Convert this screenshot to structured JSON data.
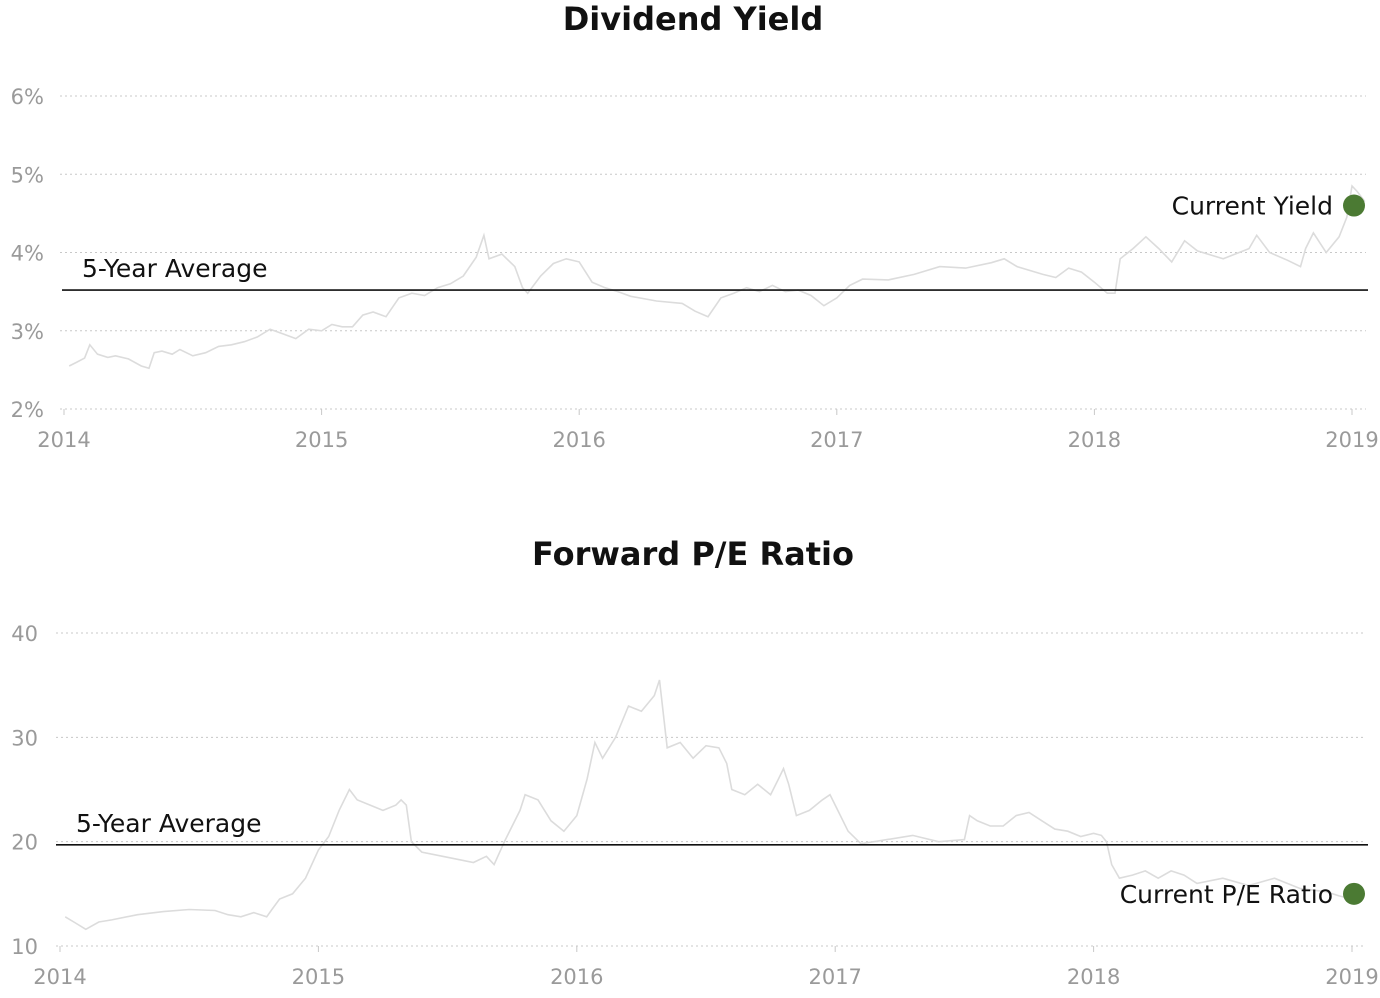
{
  "chart_data": [
    {
      "type": "line",
      "title": "Dividend Yield",
      "xlabel": "",
      "ylabel": "",
      "x_ticks": [
        "2014",
        "2015",
        "2016",
        "2017",
        "2018",
        "2019"
      ],
      "y_ticks": [
        "2%",
        "3%",
        "4%",
        "5%",
        "6%"
      ],
      "xlim": [
        2014.0,
        2019.0
      ],
      "ylim": [
        2,
        6
      ],
      "grid": "horizontal dotted",
      "average_label": "5-Year Average",
      "average_value": 3.52,
      "current_label": "Current Yield",
      "current_value": 4.6,
      "marker_color": "#4b7a33",
      "line_color": "#dcdcdc",
      "series": [
        {
          "x": [
            2014.02,
            2014.05,
            2014.08,
            2014.1,
            2014.13,
            2014.17,
            2014.2,
            2014.25,
            2014.3,
            2014.33,
            2014.35,
            2014.38,
            2014.42,
            2014.45,
            2014.5,
            2014.55,
            2014.6,
            2014.65,
            2014.7,
            2014.75,
            2014.8,
            2014.85,
            2014.9,
            2014.95,
            2015.0,
            2015.04,
            2015.08,
            2015.12,
            2015.16,
            2015.2,
            2015.25,
            2015.3,
            2015.35,
            2015.4,
            2015.45,
            2015.5,
            2015.55,
            2015.6,
            2015.63,
            2015.65,
            2015.7,
            2015.75,
            2015.78,
            2015.8,
            2015.85,
            2015.9,
            2015.95,
            2016.0,
            2016.05,
            2016.1,
            2016.15,
            2016.2,
            2016.3,
            2016.4,
            2016.45,
            2016.5,
            2016.55,
            2016.6,
            2016.65,
            2016.7,
            2016.75,
            2016.8,
            2016.85,
            2016.9,
            2016.95,
            2017.0,
            2017.05,
            2017.1,
            2017.2,
            2017.3,
            2017.4,
            2017.5,
            2017.6,
            2017.65,
            2017.7,
            2017.8,
            2017.85,
            2017.9,
            2017.95,
            2018.0,
            2018.05,
            2018.08,
            2018.1,
            2018.15,
            2018.2,
            2018.25,
            2018.3,
            2018.35,
            2018.4,
            2018.5,
            2018.6,
            2018.63,
            2018.68,
            2018.75,
            2018.8,
            2018.82,
            2018.85,
            2018.9,
            2018.95,
            2018.98,
            2019.0,
            2019.02,
            2019.05
          ],
          "y": [
            2.55,
            2.6,
            2.65,
            2.82,
            2.7,
            2.66,
            2.68,
            2.64,
            2.55,
            2.52,
            2.72,
            2.74,
            2.7,
            2.76,
            2.68,
            2.72,
            2.8,
            2.82,
            2.86,
            2.92,
            3.02,
            2.96,
            2.9,
            3.02,
            3.0,
            3.08,
            3.05,
            3.05,
            3.2,
            3.24,
            3.18,
            3.42,
            3.48,
            3.45,
            3.55,
            3.6,
            3.7,
            3.94,
            4.22,
            3.92,
            3.98,
            3.82,
            3.55,
            3.48,
            3.7,
            3.86,
            3.92,
            3.88,
            3.62,
            3.55,
            3.5,
            3.44,
            3.38,
            3.35,
            3.25,
            3.18,
            3.42,
            3.48,
            3.55,
            3.5,
            3.58,
            3.5,
            3.52,
            3.45,
            3.32,
            3.42,
            3.58,
            3.66,
            3.65,
            3.72,
            3.82,
            3.8,
            3.87,
            3.92,
            3.82,
            3.72,
            3.68,
            3.8,
            3.75,
            3.62,
            3.48,
            3.48,
            3.92,
            4.05,
            4.2,
            4.05,
            3.88,
            4.15,
            4.02,
            3.92,
            4.05,
            4.22,
            4.0,
            3.9,
            3.82,
            4.05,
            4.25,
            4.0,
            4.2,
            4.45,
            4.85,
            4.78,
            4.65
          ]
        }
      ]
    },
    {
      "type": "line",
      "title": "Forward P/E Ratio",
      "xlabel": "",
      "ylabel": "",
      "x_ticks": [
        "2014",
        "2015",
        "2016",
        "2017",
        "2018",
        "2019"
      ],
      "y_ticks": [
        "10",
        "20",
        "30",
        "40"
      ],
      "xlim": [
        2014.0,
        2019.0
      ],
      "ylim": [
        10,
        40
      ],
      "grid": "horizontal dotted",
      "average_label": "5-Year Average",
      "average_value": 19.7,
      "current_label": "Current P/E Ratio",
      "current_value": 15.0,
      "marker_color": "#4b7a33",
      "line_color": "#dcdcdc",
      "series": [
        {
          "x": [
            2014.02,
            2014.06,
            2014.1,
            2014.15,
            2014.2,
            2014.3,
            2014.4,
            2014.5,
            2014.6,
            2014.65,
            2014.7,
            2014.75,
            2014.8,
            2014.82,
            2014.85,
            2014.9,
            2014.95,
            2015.0,
            2015.04,
            2015.08,
            2015.12,
            2015.15,
            2015.2,
            2015.25,
            2015.3,
            2015.32,
            2015.34,
            2015.36,
            2015.4,
            2015.5,
            2015.6,
            2015.65,
            2015.68,
            2015.72,
            2015.78,
            2015.8,
            2015.85,
            2015.9,
            2015.95,
            2016.0,
            2016.04,
            2016.07,
            2016.1,
            2016.15,
            2016.2,
            2016.25,
            2016.3,
            2016.32,
            2016.35,
            2016.4,
            2016.45,
            2016.5,
            2016.55,
            2016.58,
            2016.6,
            2016.65,
            2016.7,
            2016.75,
            2016.78,
            2016.8,
            2016.82,
            2016.85,
            2016.9,
            2016.95,
            2016.98,
            2017.0,
            2017.05,
            2017.1,
            2017.2,
            2017.3,
            2017.4,
            2017.5,
            2017.52,
            2017.55,
            2017.6,
            2017.65,
            2017.7,
            2017.75,
            2017.8,
            2017.85,
            2017.9,
            2017.95,
            2018.0,
            2018.03,
            2018.05,
            2018.07,
            2018.1,
            2018.15,
            2018.2,
            2018.25,
            2018.3,
            2018.35,
            2018.4,
            2018.5,
            2018.6,
            2018.7,
            2018.8,
            2018.9,
            2018.95,
            2019.0,
            2019.02
          ],
          "y": [
            12.8,
            12.2,
            11.6,
            12.3,
            12.5,
            13.0,
            13.3,
            13.5,
            13.4,
            13.0,
            12.8,
            13.2,
            12.8,
            13.5,
            14.5,
            15.0,
            16.5,
            19.2,
            20.5,
            23.0,
            25.0,
            24.0,
            23.5,
            23.0,
            23.5,
            24.0,
            23.5,
            20.0,
            19.0,
            18.5,
            18.0,
            18.6,
            17.8,
            20.0,
            23.0,
            24.5,
            24.0,
            22.0,
            21.0,
            22.5,
            26.0,
            29.5,
            28.0,
            30.0,
            33.0,
            32.5,
            34.0,
            35.5,
            29.0,
            29.5,
            28.0,
            29.2,
            29.0,
            27.5,
            25.0,
            24.5,
            25.5,
            24.5,
            26.0,
            27.0,
            25.5,
            22.5,
            23.0,
            24.0,
            24.5,
            23.5,
            21.0,
            19.8,
            20.2,
            20.6,
            20.0,
            20.2,
            22.5,
            22.0,
            21.5,
            21.5,
            22.5,
            22.8,
            22.0,
            21.2,
            21.0,
            20.5,
            20.8,
            20.6,
            20.0,
            17.8,
            16.5,
            16.8,
            17.2,
            16.5,
            17.2,
            16.8,
            16.0,
            16.5,
            15.8,
            16.5,
            15.5,
            15.2,
            14.8,
            14.5,
            15.0
          ]
        }
      ]
    }
  ]
}
